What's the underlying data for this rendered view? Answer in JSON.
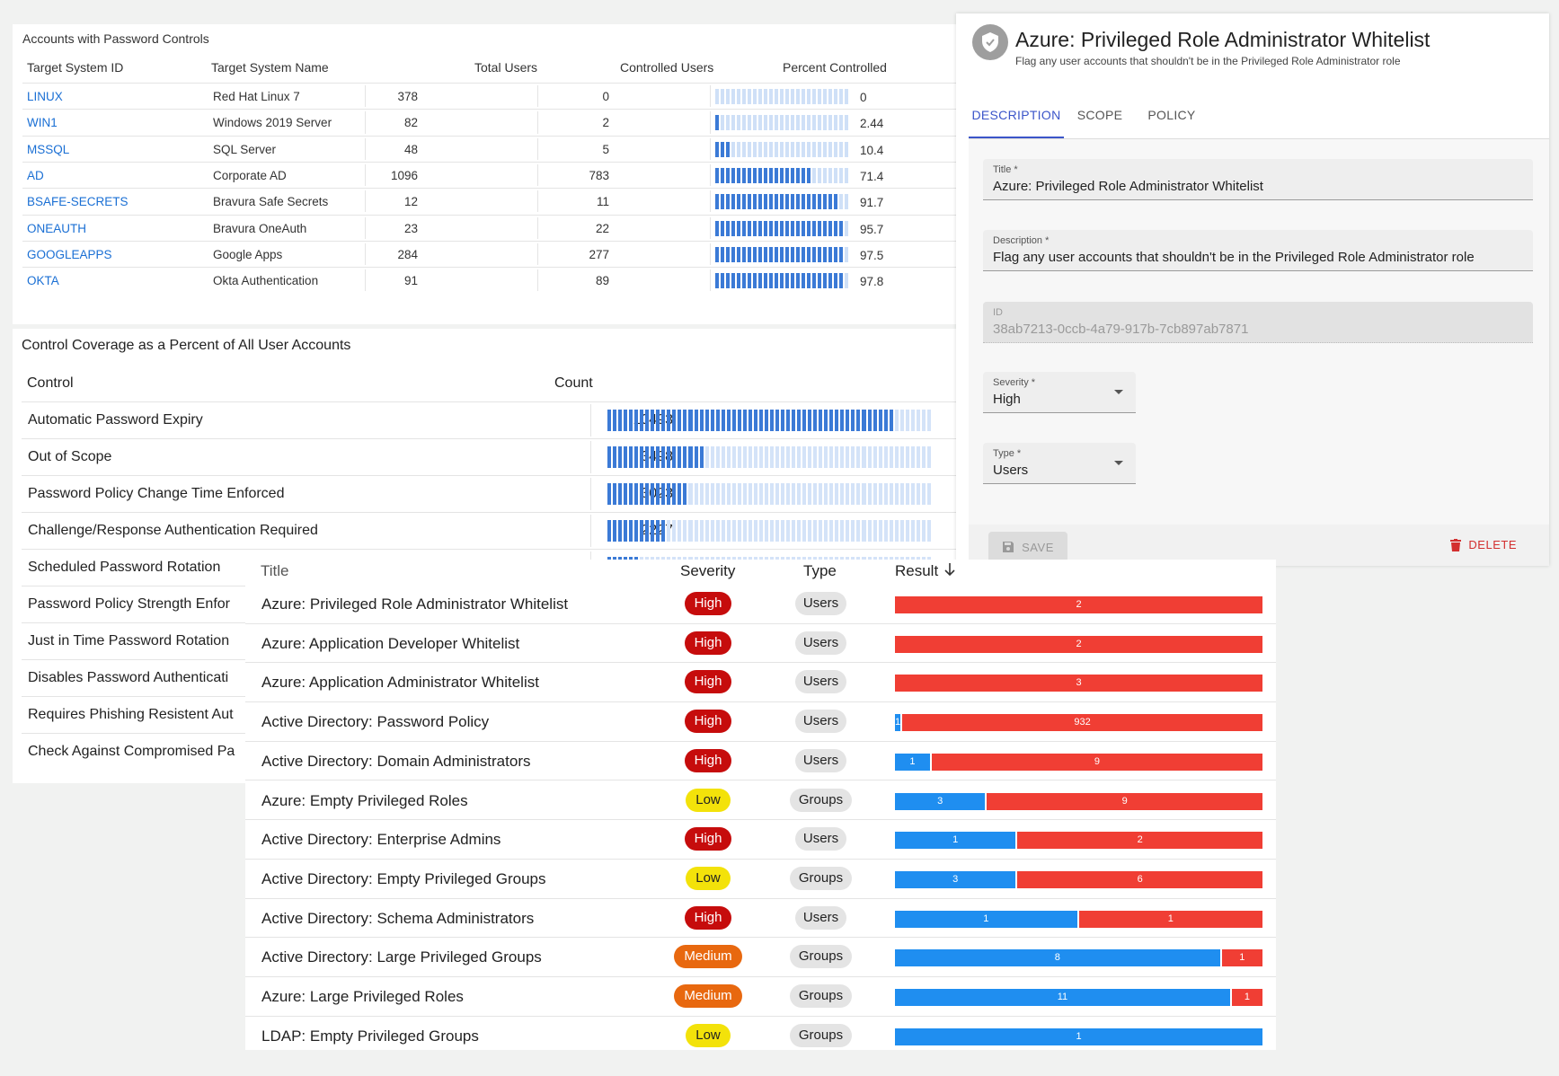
{
  "accounts": {
    "title": "Accounts with Password Controls",
    "headers": [
      "Target System ID",
      "Target System Name",
      "Total Users",
      "Controlled Users",
      "Percent Controlled"
    ],
    "rows": [
      {
        "id": "LINUX",
        "name": "Red Hat Linux 7",
        "total": "378",
        "controlled": "0",
        "percent_text": "0",
        "percent": 0
      },
      {
        "id": "WIN1",
        "name": "Windows 2019 Server",
        "total": "82",
        "controlled": "2",
        "percent_text": "2.44",
        "percent": 2.44
      },
      {
        "id": "MSSQL",
        "name": "SQL Server",
        "total": "48",
        "controlled": "5",
        "percent_text": "10.4",
        "percent": 10.4
      },
      {
        "id": "AD",
        "name": "Corporate AD",
        "total": "1096",
        "controlled": "783",
        "percent_text": "71.4",
        "percent": 71.4
      },
      {
        "id": "BSAFE-SECRETS",
        "name": "Bravura Safe Secrets",
        "total": "12",
        "controlled": "11",
        "percent_text": "91.7",
        "percent": 91.7
      },
      {
        "id": "ONEAUTH",
        "name": "Bravura OneAuth",
        "total": "23",
        "controlled": "22",
        "percent_text": "95.7",
        "percent": 95.7
      },
      {
        "id": "GOOGLEAPPS",
        "name": "Google Apps",
        "total": "284",
        "controlled": "277",
        "percent_text": "97.5",
        "percent": 97.5
      },
      {
        "id": "OKTA",
        "name": "Okta Authentication",
        "total": "91",
        "controlled": "89",
        "percent_text": "97.8",
        "percent": 97.8
      }
    ]
  },
  "coverage": {
    "title": "Control Coverage as a Percent of All User Accounts",
    "headers": [
      "Control",
      "Count"
    ],
    "max_count": 11800,
    "rows": [
      {
        "control": "Automatic Password Expiry",
        "count": "10493",
        "value": 10493
      },
      {
        "control": "Out of Scope",
        "count": "3498",
        "value": 3498
      },
      {
        "control": "Password Policy Change Time Enforced",
        "count": "3023",
        "value": 3023
      },
      {
        "control": "Challenge/Response Authentication Required",
        "count": "2227",
        "value": 2227
      },
      {
        "control": "Scheduled Password Rotation",
        "count": "",
        "value": 1200
      },
      {
        "control": "Password Policy Strength Enfor",
        "count": "",
        "value": 0
      },
      {
        "control": "Just in Time Password Rotation",
        "count": "",
        "value": 0
      },
      {
        "control": "Disables Password Authenticati",
        "count": "",
        "value": 0
      },
      {
        "control": "Requires Phishing Resistent Aut",
        "count": "",
        "value": 0
      },
      {
        "control": "Check Against Compromised Pa",
        "count": "",
        "value": 0
      }
    ]
  },
  "editor": {
    "title": "Azure: Privileged Role Administrator Whitelist",
    "subtitle": "Flag any user accounts that shouldn't be in the Privileged Role Administrator role",
    "icon": "shield-check-icon",
    "tabs": [
      "DESCRIPTION",
      "SCOPE",
      "POLICY"
    ],
    "fields": {
      "title_label": "Title *",
      "title_value": "Azure: Privileged Role Administrator Whitelist",
      "description_label": "Description *",
      "description_value": "Flag any user accounts that shouldn't be in the Privileged Role Administrator role",
      "id_label": "ID",
      "id_value": "38ab7213-0ccb-4a79-917b-7cb897ab7871",
      "severity_label": "Severity *",
      "severity_value": "High",
      "type_label": "Type *",
      "type_value": "Users"
    },
    "save_label": "SAVE",
    "delete_label": "DELETE",
    "colors": {
      "accent": "#3b55c9",
      "delete": "#d32f2f"
    }
  },
  "results": {
    "headers": {
      "title": "Title",
      "severity": "Severity",
      "type": "Type",
      "result": "Result"
    },
    "sort_icon": "arrow-down-icon",
    "colors": {
      "pass": "#1f8ef0",
      "fail": "#f03e34",
      "high": "#c60c0c",
      "medium": "#e8680f",
      "low": "#f3e20a"
    },
    "rows": [
      {
        "title": "Azure: Privileged Role Administrator Whitelist",
        "severity": "High",
        "type": "Users",
        "pass": 0,
        "fail": 2
      },
      {
        "title": "Azure: Application Developer Whitelist",
        "severity": "High",
        "type": "Users",
        "pass": 0,
        "fail": 2
      },
      {
        "title": "Azure: Application Administrator Whitelist",
        "severity": "High",
        "type": "Users",
        "pass": 0,
        "fail": 3
      },
      {
        "title": "Active Directory: Password Policy",
        "severity": "High",
        "type": "Users",
        "pass": 1,
        "fail": 932
      },
      {
        "title": "Active Directory: Domain Administrators",
        "severity": "High",
        "type": "Users",
        "pass": 1,
        "fail": 9
      },
      {
        "title": "Azure: Empty Privileged Roles",
        "severity": "Low",
        "type": "Groups",
        "pass": 3,
        "fail": 9
      },
      {
        "title": "Active Directory: Enterprise Admins",
        "severity": "High",
        "type": "Users",
        "pass": 1,
        "fail": 2
      },
      {
        "title": "Active Directory: Empty Privileged Groups",
        "severity": "Low",
        "type": "Groups",
        "pass": 3,
        "fail": 6
      },
      {
        "title": "Active Directory: Schema Administrators",
        "severity": "High",
        "type": "Users",
        "pass": 1,
        "fail": 1
      },
      {
        "title": "Active Directory: Large Privileged Groups",
        "severity": "Medium",
        "type": "Groups",
        "pass": 8,
        "fail": 1
      },
      {
        "title": "Azure: Large Privileged Roles",
        "severity": "Medium",
        "type": "Groups",
        "pass": 11,
        "fail": 1
      },
      {
        "title": "LDAP: Empty Privileged Groups",
        "severity": "Low",
        "type": "Groups",
        "pass": 1,
        "fail": 0
      }
    ]
  }
}
